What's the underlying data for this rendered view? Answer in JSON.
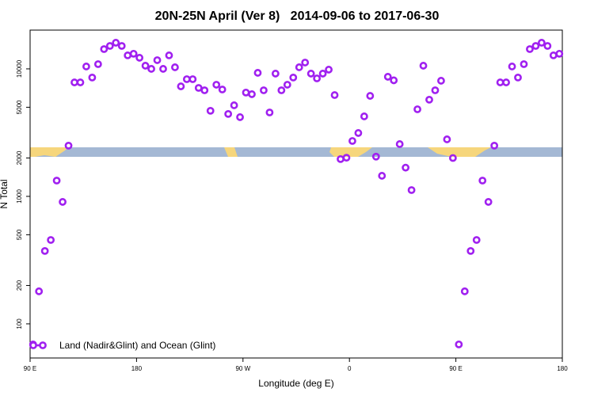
{
  "chart_data": {
    "type": "scatter",
    "title": "20N-25N April (Ver 8)   2014-09-06 to 2017-06-30",
    "x_label": "Longitude (deg E)",
    "y_label": "N Total",
    "x": [
      92.5,
      97.5,
      102.5,
      107.5,
      112.5,
      117.5,
      122.5,
      127.5,
      132.5,
      137.5,
      142.5,
      147.5,
      152.5,
      157.5,
      162.5,
      167.5,
      172.5,
      177.5,
      182.5,
      187.5,
      192.5,
      197.5,
      202.5,
      207.5,
      212.5,
      217.5,
      222.5,
      227.5,
      232.5,
      237.5,
      242.5,
      247.5,
      252.5,
      257.5,
      262.5,
      267.5,
      272.5,
      277.5,
      282.5,
      287.5,
      292.5,
      297.5,
      302.5,
      307.5,
      312.5,
      317.5,
      322.5,
      327.5,
      332.5,
      337.5,
      342.5,
      347.5,
      352.5,
      357.5,
      362.5,
      367.5,
      372.5,
      377.5,
      382.5,
      387.5,
      392.5,
      397.5,
      402.5,
      407.5,
      412.5,
      417.5,
      422.5,
      427.5,
      432.5,
      437.5,
      442.5,
      447.5,
      452.5,
      457.5,
      462.5,
      467.5,
      472.5,
      477.5,
      482.5,
      487.5,
      492.5,
      497.5,
      502.5,
      507.5,
      512.5,
      517.5,
      522.5,
      527.5,
      532.5,
      537.5
    ],
    "series": [
      {
        "name": "Land (Nadir&Glint) and Ocean (Glint)",
        "color": "#a020f0",
        "values": [
          69,
          180,
          373,
          455,
          1330,
          905,
          2500,
          7830,
          7830,
          10440,
          8550,
          10890,
          14290,
          15130,
          16030,
          15130,
          12760,
          13140,
          12220,
          10590,
          10000,
          11700,
          10000,
          12760,
          10290,
          7290,
          8300,
          8300,
          7090,
          6790,
          4690,
          7510,
          6890,
          4430,
          5180,
          4180,
          6520,
          6330,
          9310,
          6790,
          4550,
          9180,
          6790,
          7510,
          8550,
          10290,
          11210,
          9180,
          8420,
          9180,
          9860,
          6230,
          1960,
          2010,
          2720,
          3140,
          4240,
          6140,
          2050,
          1450,
          8670,
          8130,
          2570,
          1680,
          1120,
          4820,
          10590,
          5730,
          6790,
          8070,
          2800,
          2000,
          69,
          180,
          373,
          455,
          1330,
          905,
          2500,
          7830,
          7830,
          10440,
          8550,
          10890,
          14290,
          15130,
          16030,
          15130,
          12760,
          13140
        ]
      }
    ],
    "xlim": [
      90,
      540
    ],
    "xticks": [
      {
        "value": 90,
        "label": "90 E"
      },
      {
        "value": 180,
        "label": "180"
      },
      {
        "value": 270,
        "label": "90 W"
      },
      {
        "value": 360,
        "label": "0"
      },
      {
        "value": 450,
        "label": "90 E"
      },
      {
        "value": 540,
        "label": "180"
      }
    ],
    "ylim": [
      54,
      20140
    ],
    "yticks": [
      100,
      200,
      500,
      1000,
      2000,
      5000,
      10000
    ],
    "log_y": true,
    "legend": "bottom-left"
  }
}
